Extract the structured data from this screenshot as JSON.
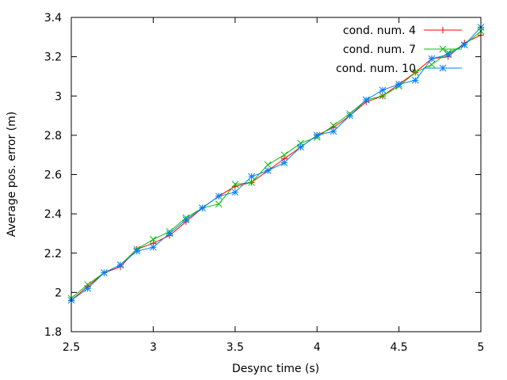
{
  "chart_data": {
    "type": "line",
    "title": "",
    "xlabel": "Desync time (s)",
    "ylabel": "Average pos. error (m)",
    "xlim": [
      2.5,
      5
    ],
    "ylim": [
      1.8,
      3.4
    ],
    "xticks": [
      2.5,
      3,
      3.5,
      4,
      4.5,
      5
    ],
    "xtick_labels": [
      "2.5",
      "3",
      "3.5",
      "4",
      "4.5",
      "5"
    ],
    "yticks": [
      1.8,
      2,
      2.2,
      2.4,
      2.6,
      2.8,
      3,
      3.2,
      3.4
    ],
    "ytick_labels": [
      "1.8",
      "2",
      "2.2",
      "2.4",
      "2.6",
      "2.8",
      "3",
      "3.2",
      "3.4"
    ],
    "grid": false,
    "legend_position": "top-right",
    "x": [
      2.5,
      2.6,
      2.7,
      2.8,
      2.9,
      3.0,
      3.1,
      3.2,
      3.3,
      3.4,
      3.5,
      3.6,
      3.7,
      3.8,
      3.9,
      4.0,
      4.1,
      4.2,
      4.3,
      4.4,
      4.5,
      4.6,
      4.7,
      4.8,
      4.9,
      5.0
    ],
    "series": [
      {
        "name": "cond. num. 4",
        "color": "#ff0000",
        "marker": "plus",
        "values": [
          1.96,
          2.03,
          2.1,
          2.13,
          2.22,
          2.25,
          2.29,
          2.36,
          2.43,
          2.49,
          2.54,
          2.56,
          2.62,
          2.68,
          2.74,
          2.8,
          2.84,
          2.9,
          2.97,
          3.0,
          3.06,
          3.12,
          3.19,
          3.2,
          3.27,
          3.31
        ]
      },
      {
        "name": "cond. num. 7",
        "color": "#00c000",
        "marker": "x",
        "values": [
          1.97,
          2.04,
          2.1,
          2.14,
          2.22,
          2.27,
          2.31,
          2.38,
          2.43,
          2.45,
          2.55,
          2.56,
          2.65,
          2.7,
          2.76,
          2.79,
          2.85,
          2.91,
          2.98,
          3.0,
          3.05,
          3.12,
          3.16,
          3.22,
          3.26,
          3.33
        ]
      },
      {
        "name": "cond. num. 10",
        "color": "#0080ff",
        "marker": "star",
        "values": [
          1.96,
          2.02,
          2.1,
          2.14,
          2.21,
          2.23,
          2.3,
          2.37,
          2.43,
          2.49,
          2.51,
          2.59,
          2.62,
          2.66,
          2.74,
          2.8,
          2.82,
          2.9,
          2.98,
          3.03,
          3.06,
          3.08,
          3.19,
          3.21,
          3.26,
          3.35
        ]
      }
    ]
  }
}
